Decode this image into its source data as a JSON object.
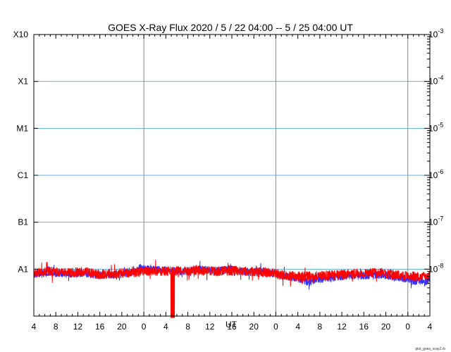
{
  "chart_data": {
    "type": "line",
    "title": "GOES X-Ray Flux   2020  /  5  /  22   04:00 --  5  /  25   04:00   UT",
    "xlabel": "UT",
    "credit": "plot_goes_xray2.rb",
    "x_range_hours": [
      0,
      72
    ],
    "x_ticks": [
      {
        "h": 0,
        "label": "4"
      },
      {
        "h": 4,
        "label": "8"
      },
      {
        "h": 8,
        "label": "12"
      },
      {
        "h": 12,
        "label": "16"
      },
      {
        "h": 16,
        "label": "20"
      },
      {
        "h": 20,
        "label": "0"
      },
      {
        "h": 24,
        "label": "4"
      },
      {
        "h": 28,
        "label": "8"
      },
      {
        "h": 32,
        "label": "12"
      },
      {
        "h": 36,
        "label": "16"
      },
      {
        "h": 40,
        "label": "20"
      },
      {
        "h": 44,
        "label": "0"
      },
      {
        "h": 48,
        "label": "4"
      },
      {
        "h": 52,
        "label": "8"
      },
      {
        "h": 56,
        "label": "12"
      },
      {
        "h": 60,
        "label": "16"
      },
      {
        "h": 64,
        "label": "20"
      },
      {
        "h": 68,
        "label": "0"
      },
      {
        "h": 72,
        "label": "4"
      }
    ],
    "day_boundaries_hours": [
      20,
      44,
      68
    ],
    "y_scale": "log",
    "ylim": [
      1e-09,
      0.001
    ],
    "left_ticks": [
      {
        "value": 0.001,
        "label": "X10"
      },
      {
        "value": 0.0001,
        "label": "X1"
      },
      {
        "value": 1e-05,
        "label": "M1"
      },
      {
        "value": 1e-06,
        "label": "C1"
      },
      {
        "value": 1e-07,
        "label": "B1"
      },
      {
        "value": 1e-08,
        "label": "A1"
      }
    ],
    "right_ticks": [
      {
        "value": 0.001,
        "base": "10",
        "exp": "-3"
      },
      {
        "value": 0.0001,
        "base": "10",
        "exp": "-4"
      },
      {
        "value": 1e-05,
        "base": "10",
        "exp": "-5"
      },
      {
        "value": 1e-06,
        "base": "10",
        "exp": "-6"
      },
      {
        "value": 1e-07,
        "base": "10",
        "exp": "-7"
      },
      {
        "value": 1e-08,
        "base": "10",
        "exp": "-8"
      }
    ],
    "class_lines": [
      0.0001,
      1e-05,
      1e-06,
      1e-07,
      1e-08
    ],
    "series": [
      {
        "color": "#3333ff",
        "hours": [
          0,
          3,
          6,
          9,
          12,
          15,
          18,
          19.5,
          21,
          24,
          27,
          30,
          33,
          36,
          39,
          42,
          45,
          48,
          50,
          51,
          52,
          54,
          57,
          60,
          63,
          66,
          68,
          69,
          70,
          71,
          72
        ],
        "values": [
          7.8e-09,
          8.5e-09,
          7.9e-09,
          8.2e-09,
          7.4e-09,
          7.7e-09,
          8.6e-09,
          1.1e-08,
          9.8e-09,
          9.5e-09,
          8.9e-09,
          1e-08,
          9.2e-09,
          1e-08,
          8.6e-09,
          9.1e-09,
          7.2e-09,
          6.4e-09,
          5.2e-09,
          5.8e-09,
          6.2e-09,
          6.4e-09,
          7.4e-09,
          7.2e-09,
          7.6e-09,
          6.8e-09,
          6.1e-09,
          5.4e-09,
          5.8e-09,
          5.2e-09,
          5.8e-09
        ],
        "noise": 0.08
      },
      {
        "color": "#ff0000",
        "hours": [
          0,
          3,
          6,
          9,
          12,
          15,
          18,
          21,
          24,
          27,
          30,
          33,
          36,
          39,
          42,
          45,
          48,
          51,
          54,
          57,
          60,
          63,
          66,
          68,
          70,
          72
        ],
        "values": [
          8.2e-09,
          9e-09,
          8.3e-09,
          8.8e-09,
          7.8e-09,
          8.1e-09,
          8.6e-09,
          9.2e-09,
          9e-09,
          9.2e-09,
          9.5e-09,
          9e-09,
          9.3e-09,
          8.8e-09,
          8.6e-09,
          7.6e-09,
          7e-09,
          7.2e-09,
          7.4e-09,
          7.9e-09,
          8.2e-09,
          8.4e-09,
          7.5e-09,
          7.2e-09,
          6.8e-09,
          7e-09
        ],
        "noise": 0.1,
        "dropout_hours": [
          24.9,
          25.6
        ]
      }
    ]
  }
}
